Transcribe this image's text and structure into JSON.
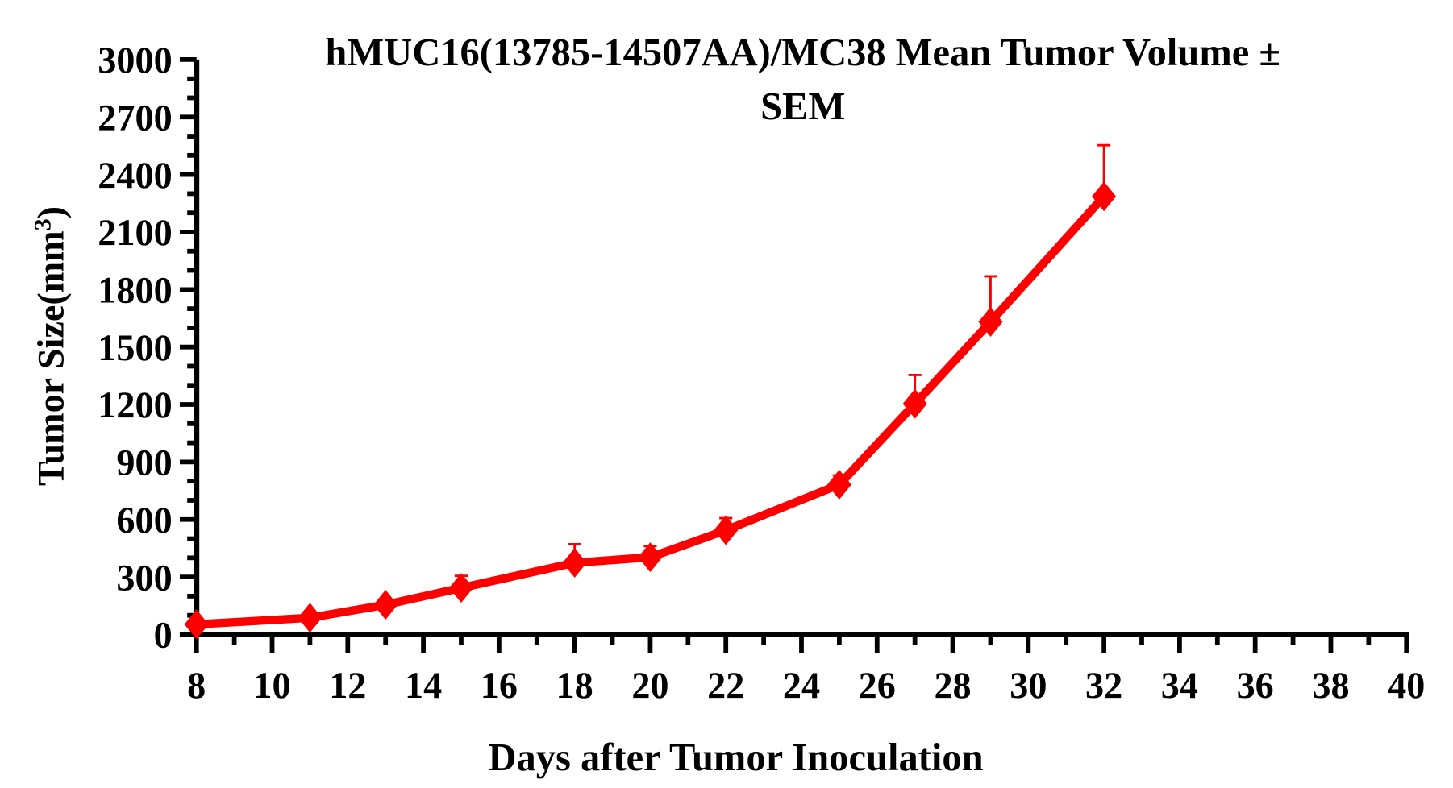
{
  "chart_data": {
    "type": "line",
    "title_line1": "hMUC16(13785-14507AA)/MC38 Mean Tumor Volume ±",
    "title_line2": "SEM",
    "xlabel": "Days after Tumor Inoculation",
    "ylabel": "Tumor Size(mm",
    "ylabel_sup": "3",
    "ylabel_close": ")",
    "xlim": [
      8,
      40
    ],
    "ylim": [
      0,
      3000
    ],
    "xticks": [
      8,
      10,
      12,
      14,
      16,
      18,
      20,
      22,
      24,
      26,
      28,
      30,
      32,
      34,
      36,
      38,
      40
    ],
    "yticks": [
      0,
      300,
      600,
      900,
      1200,
      1500,
      1800,
      2100,
      2400,
      2700,
      3000
    ],
    "grid": false,
    "series": [
      {
        "color": "#ff0000",
        "marker": "diamond",
        "x": [
          8,
          11,
          13,
          15,
          18,
          20,
          22,
          25,
          27,
          29,
          32
        ],
        "y": [
          53,
          87,
          155,
          243,
          374,
          403,
          544,
          782,
          1204,
          1631,
          2286
        ],
        "sem": [
          10,
          12,
          15,
          63,
          97,
          58,
          63,
          48,
          150,
          238,
          267
        ]
      }
    ]
  }
}
